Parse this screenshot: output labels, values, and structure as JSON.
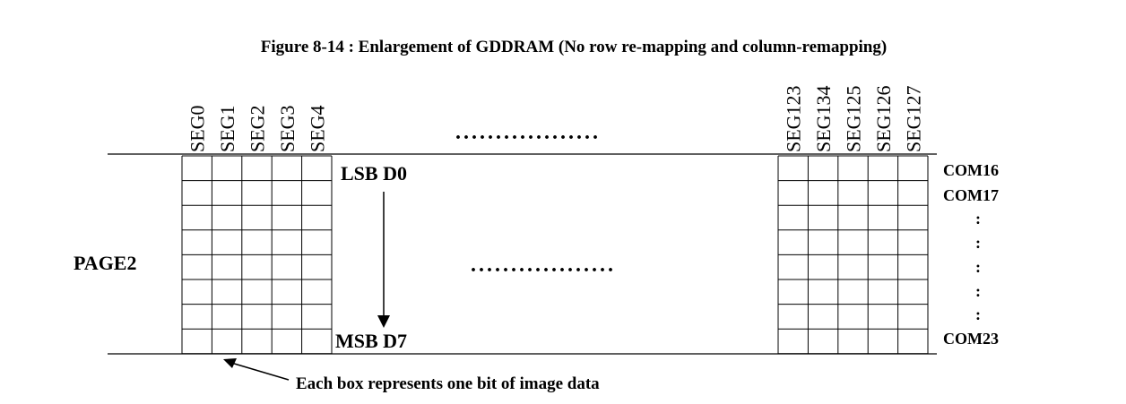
{
  "title": "Figure 8-14 : Enlargement of GDDRAM (No row re-mapping and column-remapping)",
  "page_label": "PAGE2",
  "left_segments": [
    "SEG0",
    "SEG1",
    "SEG2",
    "SEG3",
    "SEG4"
  ],
  "right_segments": [
    "SEG123",
    "SEG134",
    "SEG125",
    "SEG126",
    "SEG127"
  ],
  "bit_labels": {
    "top": "LSB D0",
    "bottom": "MSB D7"
  },
  "com_labels": {
    "top": [
      "COM16",
      "COM17"
    ],
    "bottom": "COM23",
    "ellipsis": [
      ":",
      ":",
      ":",
      ":",
      ":"
    ]
  },
  "caption": "Each box represents one bit of image data",
  "top_dots": "..................",
  "middle_dots": "..................",
  "grid_rows": 8,
  "grid_cols": 5
}
